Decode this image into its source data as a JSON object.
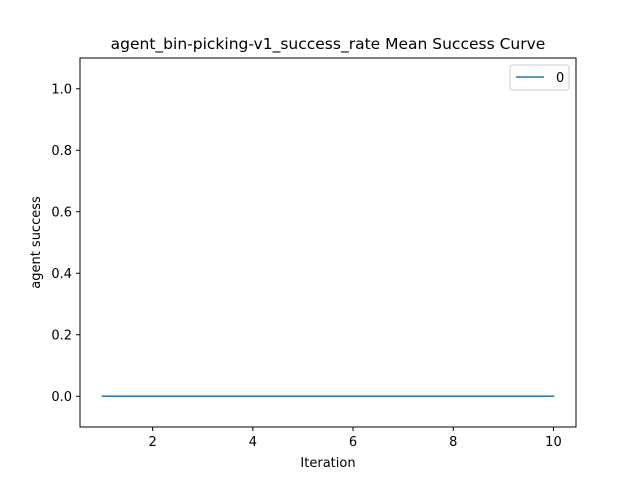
{
  "chart_data": {
    "type": "line",
    "title": "agent_bin-picking-v1_success_rate Mean Success Curve",
    "xlabel": "Iteration",
    "ylabel": "agent success",
    "xlim": [
      0.55,
      10.45
    ],
    "ylim": [
      -0.1,
      1.1
    ],
    "xticks": [
      2,
      4,
      6,
      8,
      10
    ],
    "yticks": [
      0.0,
      0.2,
      0.4,
      0.6,
      0.8,
      1.0
    ],
    "grid": false,
    "legend_position": "top-right",
    "series": [
      {
        "name": "0",
        "color": "#1f77b4",
        "x": [
          1,
          2,
          3,
          4,
          5,
          6,
          7,
          8,
          9,
          10
        ],
        "y": [
          0,
          0,
          0,
          0,
          0,
          0,
          0,
          0,
          0,
          0
        ]
      }
    ]
  }
}
